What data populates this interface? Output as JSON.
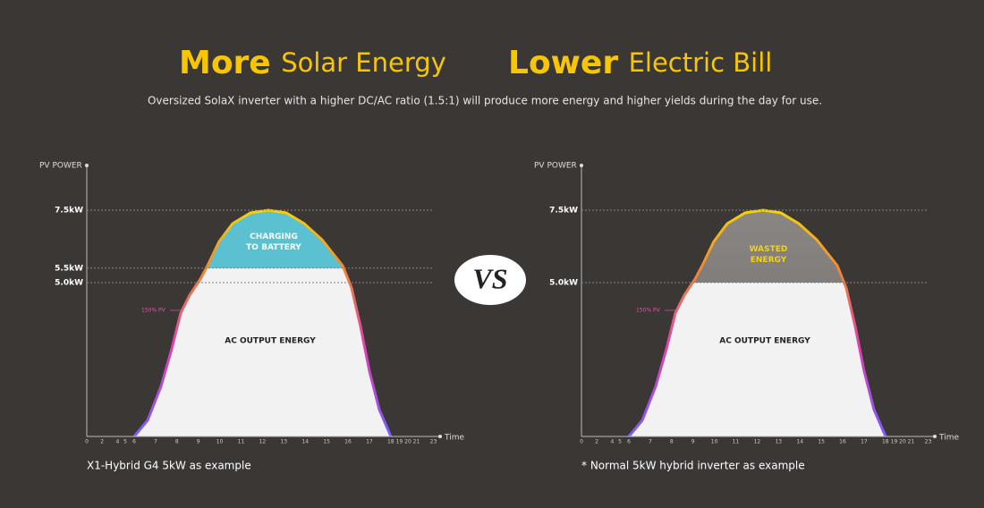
{
  "header": {
    "title_left_bold": "More",
    "title_left_rest": "Solar Energy",
    "title_right_bold": "Lower",
    "title_right_rest": "Electric Bill",
    "subtitle": "Oversized SolaX inverter with a higher DC/AC ratio (1.5:1) will produce more energy and higher yields during the day for use."
  },
  "vs": "VS",
  "panels": [
    {
      "y_axis_label": "PV POWER",
      "y_ticks": [
        "7.5kW",
        "5.5kW",
        "5.0kW"
      ],
      "x_axis_label": "Time",
      "x_ticks": [
        "0",
        "2",
        "4",
        "5",
        "6",
        "7",
        "8",
        "9",
        "10",
        "11",
        "12",
        "13",
        "14",
        "15",
        "16",
        "17",
        "18",
        "19",
        "20",
        "21",
        "23"
      ],
      "upper_label": [
        "CHARGING",
        "TO BATTERY"
      ],
      "lower_label": "AC OUTPUT ENERGY",
      "pv_label": "150% PV",
      "caption": "X1-Hybrid G4 5kW as example"
    },
    {
      "y_axis_label": "PV POWER",
      "y_ticks": [
        "7.5kW",
        "5.0kW"
      ],
      "x_axis_label": "Time",
      "x_ticks": [
        "0",
        "2",
        "4",
        "5",
        "6",
        "7",
        "8",
        "9",
        "10",
        "11",
        "12",
        "13",
        "14",
        "15",
        "16",
        "17",
        "18",
        "19",
        "20",
        "21",
        "23"
      ],
      "upper_label": [
        "WASTED",
        "ENERGY"
      ],
      "lower_label": "AC OUTPUT ENERGY",
      "pv_label": "150% PV",
      "caption": "* Normal 5kW hybrid inverter as example"
    }
  ]
}
